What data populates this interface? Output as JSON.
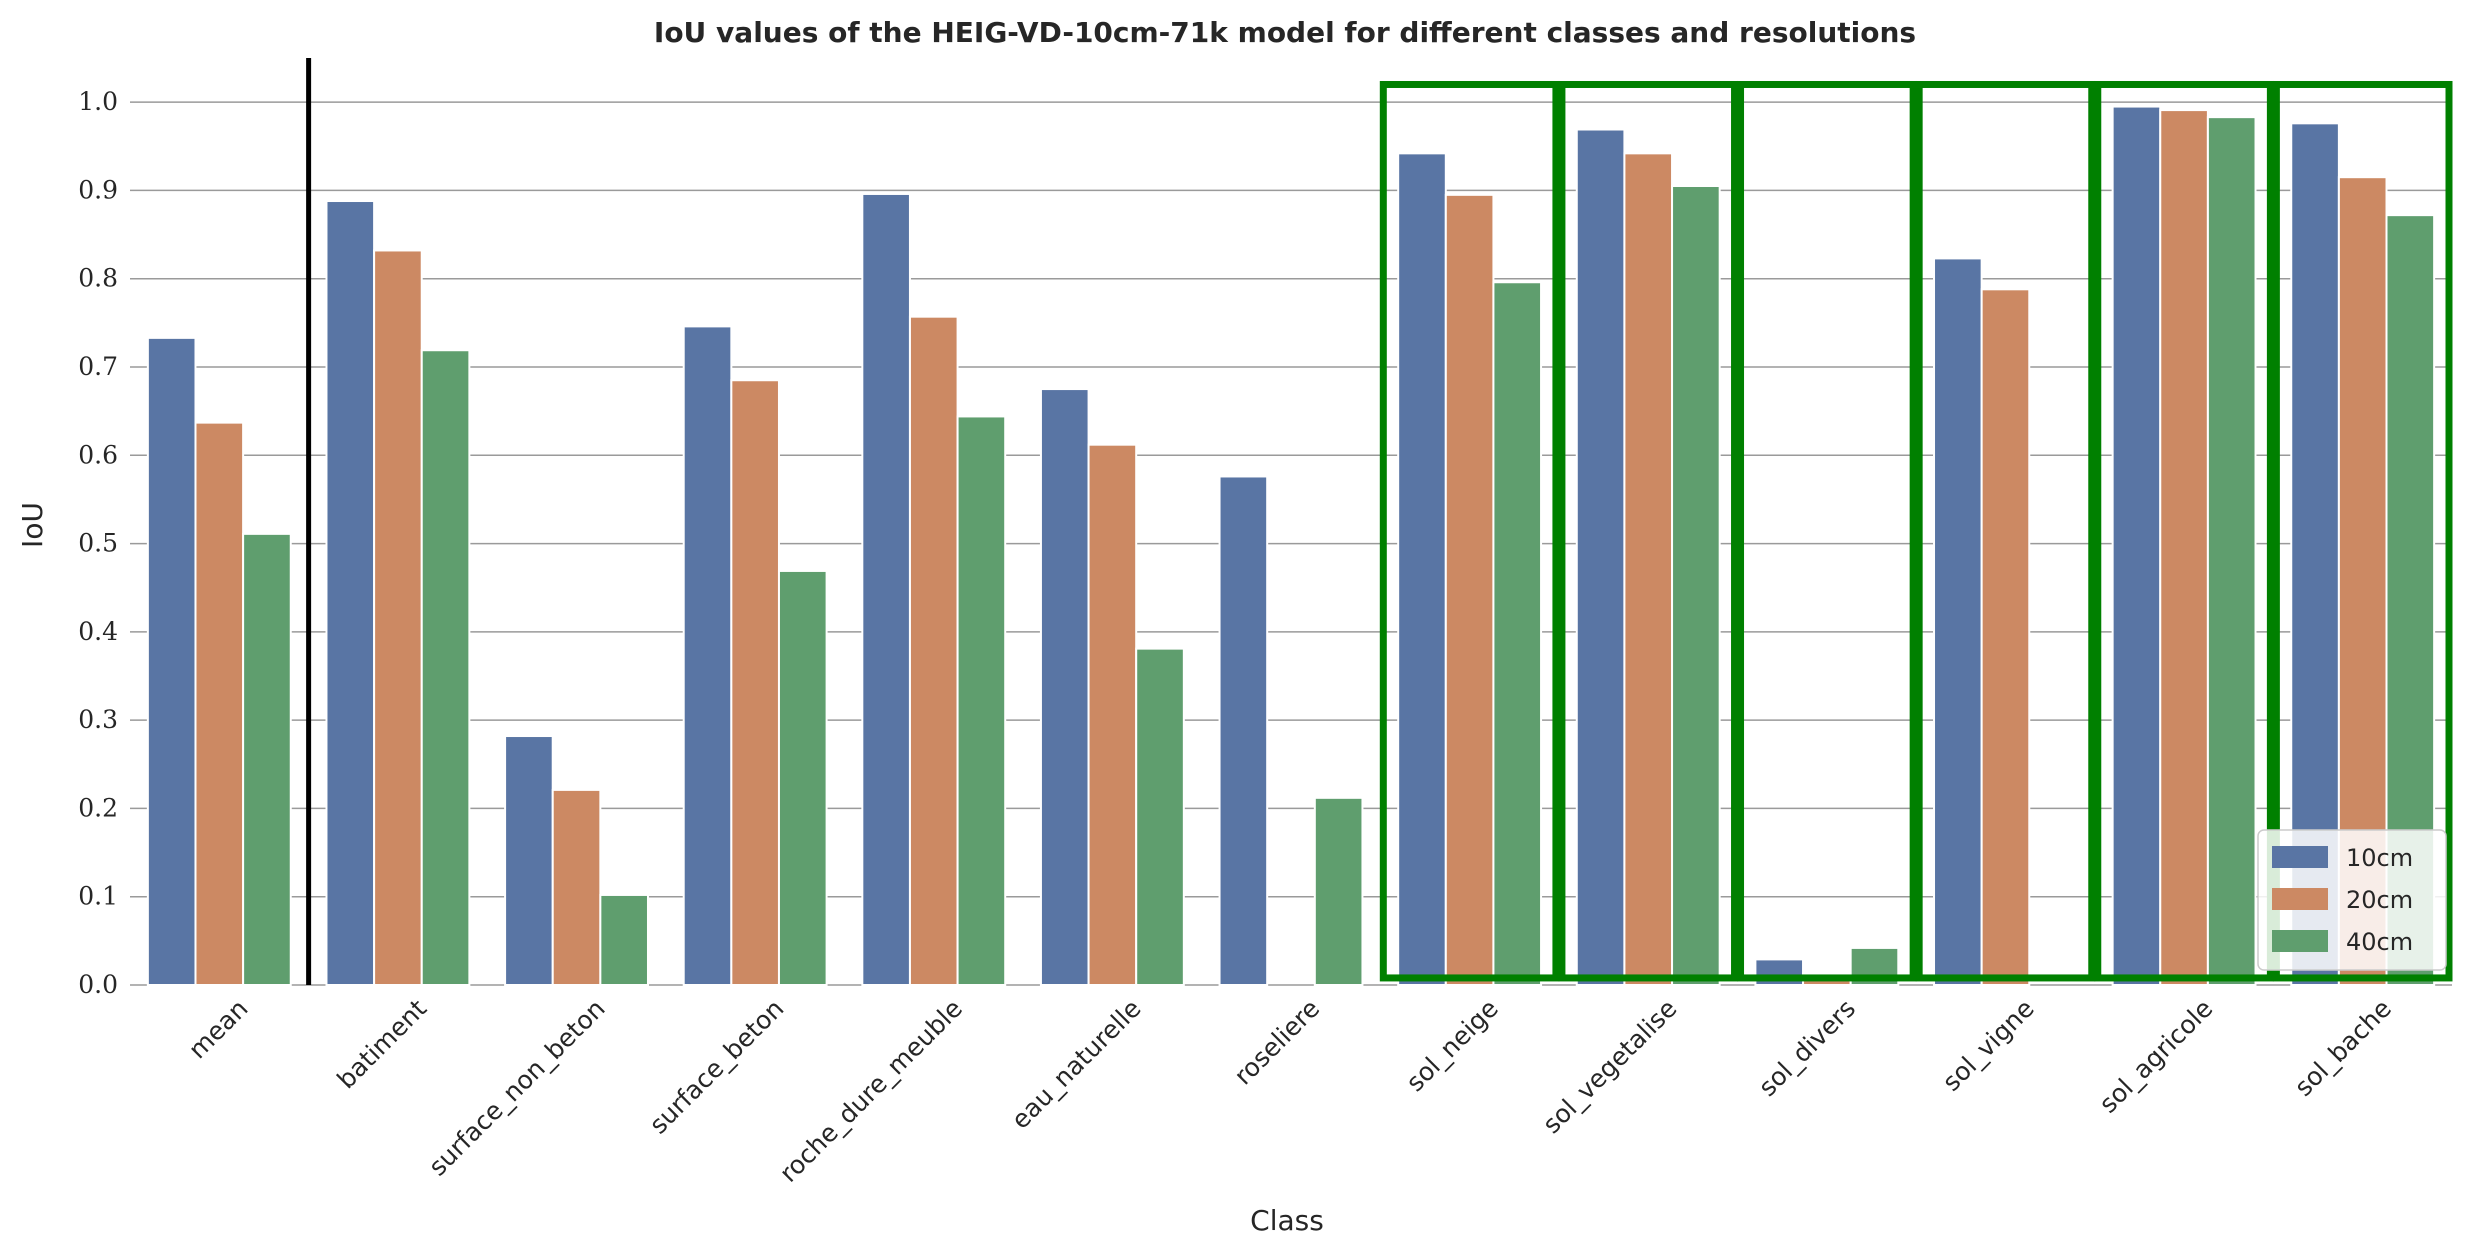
{
  "chart_data": {
    "type": "bar",
    "title": "IoU values of the HEIG-VD-10cm-71k model for different classes and resolutions",
    "xlabel": "Class",
    "ylabel": "IoU",
    "ylim": [
      0,
      1.05
    ],
    "yticks": [
      "0.0",
      "0.1",
      "0.2",
      "0.3",
      "0.4",
      "0.5",
      "0.6",
      "0.7",
      "0.8",
      "0.9",
      "1.0"
    ],
    "grid": true,
    "legend_position": "bottom-right",
    "categories": [
      "mean",
      "batiment",
      "surface_non_beton",
      "surface_beton",
      "roche_dure_meuble",
      "eau_naturelle",
      "roseliere",
      "sol_neige",
      "sol_vegetalise",
      "sol_divers",
      "sol_vigne",
      "sol_agricole",
      "sol_bache"
    ],
    "series": [
      {
        "name": "10cm",
        "color": "#5975a4",
        "values": [
          0.733,
          0.888,
          0.282,
          0.746,
          0.896,
          0.675,
          0.576,
          0.942,
          0.969,
          0.029,
          0.823,
          0.995,
          0.976
        ]
      },
      {
        "name": "20cm",
        "color": "#cc8963",
        "values": [
          0.637,
          0.832,
          0.221,
          0.685,
          0.757,
          0.612,
          0.0,
          0.895,
          0.942,
          0.013,
          0.788,
          0.991,
          0.915
        ]
      },
      {
        "name": "40cm",
        "color": "#5f9e6e",
        "values": [
          0.511,
          0.719,
          0.102,
          0.469,
          0.644,
          0.381,
          0.212,
          0.796,
          0.905,
          0.042,
          0.0,
          0.983,
          0.872
        ]
      }
    ],
    "separator_after_index": 0,
    "separator_color": "#000000",
    "highlighted_categories": [
      "sol_neige",
      "sol_vegetalise",
      "sol_divers",
      "sol_vigne",
      "sol_agricole",
      "sol_bache"
    ],
    "highlight_color": "#008000"
  }
}
